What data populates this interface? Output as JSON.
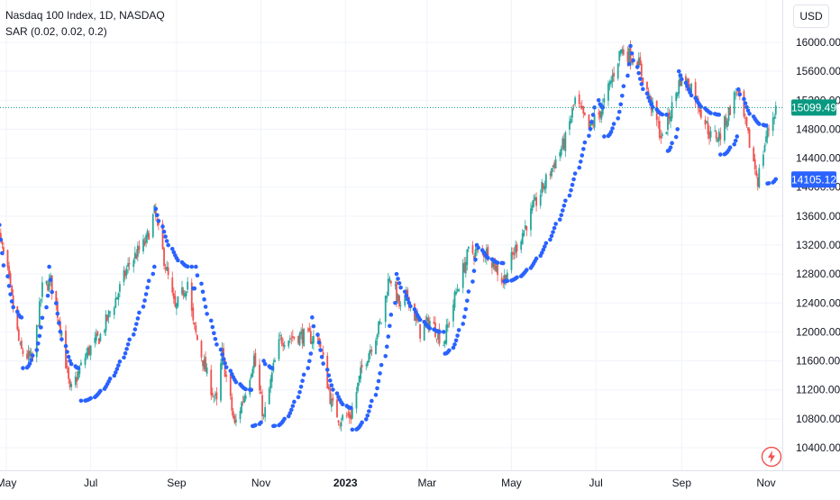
{
  "legend": {
    "symbol": "Nasdaq 100 Index, 1D, NASDAQ",
    "indicator": "SAR (0.02, 0.02, 0.2)"
  },
  "currency": "USD",
  "colors": {
    "up": "#26a69a",
    "down": "#ef5350",
    "sar": "#2962ff",
    "price_line": "#089981",
    "sar_badge": "#2962ff"
  },
  "chart_data": {
    "type": "candlestick",
    "ylim": [
      10200,
      16300
    ],
    "yticks": [
      10400,
      10800,
      11200,
      11600,
      12000,
      12400,
      12800,
      13200,
      13600,
      14000,
      14400,
      14800,
      15200,
      15600,
      16000
    ],
    "ytick_labels": [
      "10400.00",
      "10800.00",
      "11200.00",
      "11600.00",
      "12000.00",
      "12400.00",
      "12800.00",
      "13200.00",
      "13600.00",
      "14000.00",
      "14400.00",
      "14800.00",
      "15200.00",
      "15600.00",
      "16000.00"
    ],
    "xlim": [
      "2022-05-01",
      "2023-11-09"
    ],
    "xticks": [
      {
        "date": "2022-05-01",
        "label": "May"
      },
      {
        "date": "2022-07-01",
        "label": "Jul"
      },
      {
        "date": "2022-09-01",
        "label": "Sep"
      },
      {
        "date": "2022-11-01",
        "label": "Nov"
      },
      {
        "date": "2023-01-01",
        "label": "2023"
      },
      {
        "date": "2023-03-01",
        "label": "Mar"
      },
      {
        "date": "2023-05-01",
        "label": "May"
      },
      {
        "date": "2023-07-01",
        "label": "Jul"
      },
      {
        "date": "2023-09-01",
        "label": "Sep"
      },
      {
        "date": "2023-11-01",
        "label": "Nov"
      }
    ],
    "price_path": [
      [
        "2022-04-25",
        13400
      ],
      [
        "2022-05-02",
        12800
      ],
      [
        "2022-05-11",
        11750
      ],
      [
        "2022-05-20",
        11600
      ],
      [
        "2022-05-27",
        12600
      ],
      [
        "2022-06-02",
        12700
      ],
      [
        "2022-06-10",
        12000
      ],
      [
        "2022-06-16",
        11150
      ],
      [
        "2022-06-28",
        11700
      ],
      [
        "2022-07-08",
        11950
      ],
      [
        "2022-07-20",
        12500
      ],
      [
        "2022-07-29",
        12950
      ],
      [
        "2022-08-10",
        13250
      ],
      [
        "2022-08-16",
        13650
      ],
      [
        "2022-08-22",
        13100
      ],
      [
        "2022-08-31",
        12300
      ],
      [
        "2022-09-09",
        12700
      ],
      [
        "2022-09-13",
        12100
      ],
      [
        "2022-09-23",
        11400
      ],
      [
        "2022-09-30",
        11000
      ],
      [
        "2022-10-04",
        11700
      ],
      [
        "2022-10-13",
        10700
      ],
      [
        "2022-10-21",
        11200
      ],
      [
        "2022-10-27",
        11650
      ],
      [
        "2022-11-03",
        10800
      ],
      [
        "2022-11-10",
        11500
      ],
      [
        "2022-11-15",
        11900
      ],
      [
        "2022-11-30",
        11950
      ],
      [
        "2022-12-13",
        11900
      ],
      [
        "2022-12-22",
        11000
      ],
      [
        "2022-12-28",
        10800
      ],
      [
        "2023-01-05",
        10850
      ],
      [
        "2023-01-13",
        11500
      ],
      [
        "2023-01-27",
        12150
      ],
      [
        "2023-02-02",
        12800
      ],
      [
        "2023-02-10",
        12300
      ],
      [
        "2023-02-15",
        12500
      ],
      [
        "2023-02-24",
        12000
      ],
      [
        "2023-03-03",
        12150
      ],
      [
        "2023-03-13",
        11850
      ],
      [
        "2023-03-22",
        12550
      ],
      [
        "2023-03-31",
        13100
      ],
      [
        "2023-04-14",
        13100
      ],
      [
        "2023-04-25",
        12700
      ],
      [
        "2023-05-05",
        13200
      ],
      [
        "2023-05-19",
        13800
      ],
      [
        "2023-05-31",
        14300
      ],
      [
        "2023-06-09",
        14650
      ],
      [
        "2023-06-16",
        15200
      ],
      [
        "2023-06-26",
        14800
      ],
      [
        "2023-07-06",
        15100
      ],
      [
        "2023-07-19",
        15900
      ],
      [
        "2023-07-31",
        15750
      ],
      [
        "2023-08-09",
        15200
      ],
      [
        "2023-08-18",
        14650
      ],
      [
        "2023-08-31",
        15500
      ],
      [
        "2023-09-08",
        15400
      ],
      [
        "2023-09-22",
        14700
      ],
      [
        "2023-09-29",
        14720
      ],
      [
        "2023-10-11",
        15350
      ],
      [
        "2023-10-26",
        14100
      ],
      [
        "2023-11-01",
        14700
      ],
      [
        "2023-11-08",
        15100
      ]
    ],
    "sar_segments": [
      {
        "dir": "down",
        "from": [
          "2022-04-25",
          13700
        ],
        "to": [
          "2022-05-12",
          12200
        ]
      },
      {
        "dir": "up",
        "from": [
          "2022-05-13",
          11500
        ],
        "to": [
          "2022-05-31",
          12500
        ]
      },
      {
        "dir": "down",
        "from": [
          "2022-06-01",
          12900
        ],
        "to": [
          "2022-06-22",
          11500
        ]
      },
      {
        "dir": "up",
        "from": [
          "2022-06-24",
          11050
        ],
        "to": [
          "2022-08-16",
          12900
        ]
      },
      {
        "dir": "down",
        "from": [
          "2022-08-17",
          13700
        ],
        "to": [
          "2022-09-12",
          12900
        ]
      },
      {
        "dir": "up",
        "from": [
          "2022-09-13",
          12600
        ],
        "to": [
          "2022-09-14",
          12600
        ]
      },
      {
        "dir": "down",
        "from": [
          "2022-09-15",
          12900
        ],
        "to": [
          "2022-10-25",
          11200
        ]
      },
      {
        "dir": "up",
        "from": [
          "2022-10-26",
          10700
        ],
        "to": [
          "2022-11-01",
          10750
        ]
      },
      {
        "dir": "down",
        "from": [
          "2022-11-03",
          11600
        ],
        "to": [
          "2022-11-09",
          11500
        ]
      },
      {
        "dir": "up",
        "from": [
          "2022-11-10",
          10700
        ],
        "to": [
          "2022-12-07",
          11700
        ]
      },
      {
        "dir": "down",
        "from": [
          "2022-12-08",
          12200
        ],
        "to": [
          "2023-01-05",
          10950
        ]
      },
      {
        "dir": "up",
        "from": [
          "2023-01-06",
          10650
        ],
        "to": [
          "2023-02-06",
          12400
        ]
      },
      {
        "dir": "down",
        "from": [
          "2023-02-07",
          12800
        ],
        "to": [
          "2023-03-13",
          12000
        ]
      },
      {
        "dir": "up",
        "from": [
          "2023-03-14",
          11700
        ],
        "to": [
          "2023-04-05",
          13000
        ]
      },
      {
        "dir": "down",
        "from": [
          "2023-04-06",
          13200
        ],
        "to": [
          "2023-04-25",
          12950
        ]
      },
      {
        "dir": "up",
        "from": [
          "2023-04-26",
          12700
        ],
        "to": [
          "2023-06-30",
          15100
        ]
      },
      {
        "dir": "down",
        "from": [
          "2023-07-03",
          15200
        ],
        "to": [
          "2023-07-06",
          15100
        ]
      },
      {
        "dir": "up",
        "from": [
          "2023-07-07",
          14700
        ],
        "to": [
          "2023-07-25",
          15700
        ]
      },
      {
        "dir": "down",
        "from": [
          "2023-07-26",
          15950
        ],
        "to": [
          "2023-08-21",
          15000
        ]
      },
      {
        "dir": "up",
        "from": [
          "2023-08-22",
          14500
        ],
        "to": [
          "2023-08-29",
          14800
        ]
      },
      {
        "dir": "down",
        "from": [
          "2023-08-30",
          15600
        ],
        "to": [
          "2023-09-28",
          15000
        ]
      },
      {
        "dir": "up",
        "from": [
          "2023-09-29",
          14450
        ],
        "to": [
          "2023-10-11",
          14700
        ]
      },
      {
        "dir": "down",
        "from": [
          "2023-10-12",
          15350
        ],
        "to": [
          "2023-11-01",
          14850
        ]
      },
      {
        "dir": "up",
        "from": [
          "2023-11-02",
          14050
        ],
        "to": [
          "2023-11-09",
          14110
        ]
      }
    ],
    "last_price": 15099.49,
    "last_price_label": "15099.49",
    "sar_value": 14105.12,
    "sar_value_label": "14105.12"
  }
}
